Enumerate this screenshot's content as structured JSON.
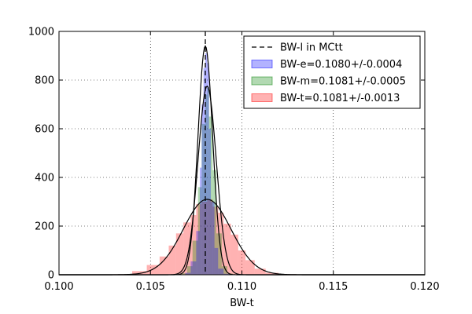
{
  "chart_data": {
    "type": "histogram",
    "title": "",
    "xlabel": "BW-t",
    "ylabel": "",
    "xlim": [
      0.1,
      0.12
    ],
    "ylim": [
      0,
      1000
    ],
    "xticks": [
      "0.100",
      "0.105",
      "0.110",
      "0.115",
      "0.120"
    ],
    "yticks": [
      "0",
      "200",
      "400",
      "600",
      "800",
      "1000"
    ],
    "grid": true,
    "legend_position": "top-right",
    "reference_line": {
      "label": "BW-l in MCtt",
      "x": 0.108,
      "style": "dashed",
      "color": "#000000"
    },
    "series": [
      {
        "name": "BW-e=0.1080+/-0.0004",
        "color": "#0000ff",
        "fill_alpha": 0.3,
        "mean": 0.108,
        "sigma": 0.0004,
        "peak": 940,
        "bins": [
          {
            "x0": 0.1069,
            "x1": 0.1072,
            "y": 8
          },
          {
            "x0": 0.1072,
            "x1": 0.1075,
            "y": 55
          },
          {
            "x0": 0.1075,
            "x1": 0.1077,
            "y": 180
          },
          {
            "x0": 0.1077,
            "x1": 0.1078,
            "y": 440
          },
          {
            "x0": 0.1078,
            "x1": 0.1079,
            "y": 700
          },
          {
            "x0": 0.1079,
            "x1": 0.108,
            "y": 850
          },
          {
            "x0": 0.108,
            "x1": 0.1081,
            "y": 910
          },
          {
            "x0": 0.1081,
            "x1": 0.1082,
            "y": 870
          },
          {
            "x0": 0.1082,
            "x1": 0.1083,
            "y": 600
          },
          {
            "x0": 0.1083,
            "x1": 0.1085,
            "y": 300
          },
          {
            "x0": 0.1085,
            "x1": 0.1087,
            "y": 110
          },
          {
            "x0": 0.1087,
            "x1": 0.109,
            "y": 25
          },
          {
            "x0": 0.109,
            "x1": 0.1093,
            "y": 4
          }
        ]
      },
      {
        "name": "BW-m=0.1081+/-0.0005",
        "color": "#008000",
        "fill_alpha": 0.3,
        "mean": 0.1081,
        "sigma": 0.0005,
        "peak": 775,
        "bins": [
          {
            "x0": 0.1067,
            "x1": 0.107,
            "y": 6
          },
          {
            "x0": 0.107,
            "x1": 0.1073,
            "y": 35
          },
          {
            "x0": 0.1073,
            "x1": 0.1076,
            "y": 140
          },
          {
            "x0": 0.1076,
            "x1": 0.1078,
            "y": 360
          },
          {
            "x0": 0.1078,
            "x1": 0.108,
            "y": 620
          },
          {
            "x0": 0.108,
            "x1": 0.1081,
            "y": 740
          },
          {
            "x0": 0.1081,
            "x1": 0.1082,
            "y": 770
          },
          {
            "x0": 0.1082,
            "x1": 0.1084,
            "y": 650
          },
          {
            "x0": 0.1084,
            "x1": 0.1086,
            "y": 430
          },
          {
            "x0": 0.1086,
            "x1": 0.1089,
            "y": 170
          },
          {
            "x0": 0.1089,
            "x1": 0.1092,
            "y": 35
          },
          {
            "x0": 0.1092,
            "x1": 0.1095,
            "y": 5
          }
        ]
      },
      {
        "name": "BW-t=0.1081+/-0.0013",
        "color": "#ff0000",
        "fill_alpha": 0.3,
        "mean": 0.1081,
        "sigma": 0.0013,
        "peak": 310,
        "bins": [
          {
            "x0": 0.103,
            "x1": 0.104,
            "y": 2
          },
          {
            "x0": 0.104,
            "x1": 0.1048,
            "y": 15
          },
          {
            "x0": 0.1048,
            "x1": 0.1055,
            "y": 40
          },
          {
            "x0": 0.1055,
            "x1": 0.106,
            "y": 75
          },
          {
            "x0": 0.106,
            "x1": 0.1064,
            "y": 120
          },
          {
            "x0": 0.1064,
            "x1": 0.1068,
            "y": 170
          },
          {
            "x0": 0.1068,
            "x1": 0.1072,
            "y": 215
          },
          {
            "x0": 0.1072,
            "x1": 0.1075,
            "y": 245
          },
          {
            "x0": 0.1075,
            "x1": 0.1078,
            "y": 290
          },
          {
            "x0": 0.1078,
            "x1": 0.1081,
            "y": 300
          },
          {
            "x0": 0.1081,
            "x1": 0.1084,
            "y": 310
          },
          {
            "x0": 0.1084,
            "x1": 0.1087,
            "y": 280
          },
          {
            "x0": 0.1087,
            "x1": 0.109,
            "y": 255
          },
          {
            "x0": 0.109,
            "x1": 0.1094,
            "y": 210
          },
          {
            "x0": 0.1094,
            "x1": 0.1098,
            "y": 165
          },
          {
            "x0": 0.1098,
            "x1": 0.1102,
            "y": 100
          },
          {
            "x0": 0.1102,
            "x1": 0.1107,
            "y": 60
          },
          {
            "x0": 0.1107,
            "x1": 0.1113,
            "y": 25
          },
          {
            "x0": 0.1113,
            "x1": 0.112,
            "y": 8
          },
          {
            "x0": 0.112,
            "x1": 0.113,
            "y": 2
          }
        ]
      }
    ]
  }
}
